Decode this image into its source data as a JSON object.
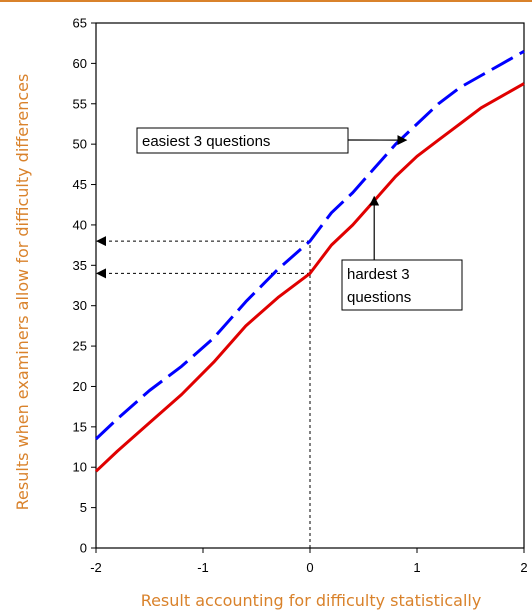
{
  "chart_data": {
    "type": "line",
    "title": "",
    "xlabel": "Result accounting for difficulty statistically",
    "ylabel": "Results when examiners allow for difficulty differences",
    "xlim": [
      -2,
      2
    ],
    "ylim": [
      0,
      65
    ],
    "x_ticks": [
      -2,
      -1,
      0,
      1,
      2
    ],
    "y_ticks": [
      0,
      5,
      10,
      15,
      20,
      25,
      30,
      35,
      40,
      45,
      50,
      55,
      60,
      65
    ],
    "grid": false,
    "legend": "none",
    "axis_label_color": "#d9822b",
    "series": [
      {
        "name": "easiest 3 questions",
        "color": "#0000ff",
        "style": "dashed",
        "x": [
          -2.0,
          -1.8,
          -1.5,
          -1.2,
          -0.9,
          -0.6,
          -0.3,
          0.0,
          0.2,
          0.4,
          0.6,
          0.8,
          1.0,
          1.2,
          1.4,
          1.6,
          1.8,
          2.0
        ],
        "y": [
          13.5,
          16.0,
          19.5,
          22.5,
          26.0,
          30.5,
          34.5,
          38.0,
          41.5,
          44.0,
          47.0,
          50.0,
          52.5,
          55.0,
          57.0,
          58.5,
          60.0,
          61.5
        ]
      },
      {
        "name": "hardest 3 questions",
        "color": "#e00000",
        "style": "solid",
        "x": [
          -2.0,
          -1.8,
          -1.5,
          -1.2,
          -0.9,
          -0.6,
          -0.3,
          0.0,
          0.2,
          0.4,
          0.6,
          0.8,
          1.0,
          1.2,
          1.4,
          1.6,
          1.8,
          2.0
        ],
        "y": [
          9.5,
          12.0,
          15.5,
          19.0,
          23.0,
          27.5,
          31.0,
          34.0,
          37.5,
          40.0,
          43.0,
          46.0,
          48.5,
          50.5,
          52.5,
          54.5,
          56.0,
          57.5
        ]
      }
    ],
    "reference_lines": [
      {
        "y": 38,
        "x_from": -2,
        "x_to": 0
      },
      {
        "y": 34,
        "x_from": -2,
        "x_to": 0
      },
      {
        "x": 0,
        "y_from": 0,
        "y_to": 38
      }
    ],
    "annotations": [
      {
        "lines": [
          "easiest 3 questions"
        ],
        "series": "easiest 3 questions",
        "arrow_to": [
          0.9,
          50.5
        ]
      },
      {
        "lines": [
          "hardest 3",
          "questions"
        ],
        "series": "hardest 3 questions",
        "arrow_to": [
          0.6,
          43.5
        ]
      }
    ]
  }
}
